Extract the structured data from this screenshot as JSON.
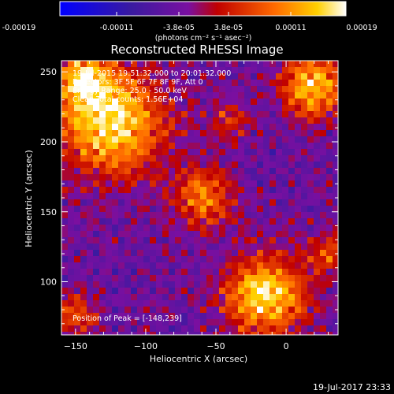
{
  "colorbar": {
    "ticks": [
      "-0.00019",
      "-0.00011",
      "-3.8e-05",
      "3.8e-05",
      "0.00011",
      "0.00019"
    ],
    "unit_label": "(photons cm⁻² s⁻¹ asec⁻²)"
  },
  "chart_data": {
    "type": "heatmap",
    "title": "Reconstructed RHESSI Image",
    "xlabel": "Heliocentric X (arcsec)",
    "ylabel": "Heliocentric Y (arcsec)",
    "xlim": [
      -160,
      37
    ],
    "ylim": [
      62,
      258
    ],
    "xticks": [
      -150,
      -100,
      -50,
      0
    ],
    "yticks": [
      100,
      150,
      200,
      250
    ],
    "xtick_labels": [
      "−150",
      "−100",
      "−50",
      "0"
    ],
    "ytick_labels": [
      "100",
      "150",
      "200",
      "250"
    ],
    "zrange": [
      -0.00019,
      0.00019
    ],
    "annotations": [
      "19-Jul-2015 19:51:32.000 to 20:01:32.000",
      "Detectors: 3F 5F 6F 7F 8F 9F, Att 0",
      "Energy Range: 25.0 - 50.0 keV",
      "Clean   Total counts: 1.56E+04"
    ],
    "peak_label": "Position of Peak = [-148,239]",
    "peak": [
      -148,
      239
    ],
    "grid": false
  },
  "footer": {
    "timestamp": "19-Jul-2017 23:33"
  }
}
